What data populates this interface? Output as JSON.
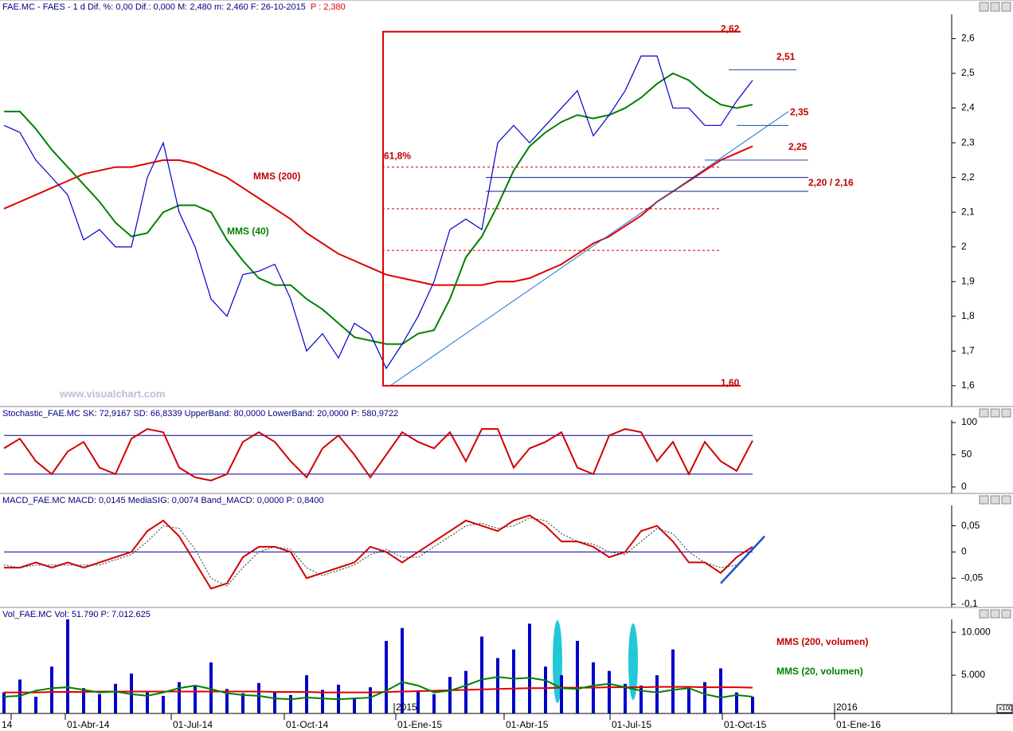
{
  "chart_data": [
    {
      "type": "line",
      "title": "FAE.MC - FAES - 1 d Dif. %: 0,00 Dif.: 0,000 M: 2,480 m: 2,460 F: 26-10-2015",
      "subtitle": "P : 2,380",
      "ylim": [
        1.54,
        2.67
      ],
      "yticks": [
        {
          "value": 1.6,
          "label": "1,6"
        },
        {
          "value": 1.7,
          "label": "1,7"
        },
        {
          "value": 1.8,
          "label": "1,8"
        },
        {
          "value": 1.9,
          "label": "1,9"
        },
        2,
        {
          "value": 2.1,
          "label": "2,1"
        },
        {
          "value": 2.2,
          "label": "2,2"
        },
        {
          "value": 2.3,
          "label": "2,3"
        },
        {
          "value": 2.4,
          "label": "2,4"
        },
        {
          "value": 2.5,
          "label": "2,5"
        },
        {
          "value": 2.6,
          "label": "2,6"
        }
      ],
      "series": [
        {
          "name": "MMS (200)",
          "color": "#e00000",
          "values": [
            2.11,
            2.13,
            2.15,
            2.17,
            2.19,
            2.21,
            2.22,
            2.23,
            2.23,
            2.24,
            2.25,
            2.25,
            2.24,
            2.22,
            2.2,
            2.17,
            2.14,
            2.11,
            2.08,
            2.04,
            2.01,
            1.98,
            1.96,
            1.94,
            1.92,
            1.91,
            1.9,
            1.89,
            1.89,
            1.89,
            1.89,
            1.9,
            1.9,
            1.91,
            1.93,
            1.95,
            1.98,
            2.01,
            2.03,
            2.06,
            2.09,
            2.13,
            2.16,
            2.19,
            2.22,
            2.25,
            2.27,
            2.29
          ]
        },
        {
          "name": "MMS (40)",
          "color": "#008000",
          "values": [
            2.39,
            2.39,
            2.34,
            2.28,
            2.23,
            2.18,
            2.13,
            2.07,
            2.03,
            2.04,
            2.1,
            2.12,
            2.12,
            2.1,
            2.02,
            1.96,
            1.91,
            1.89,
            1.89,
            1.85,
            1.82,
            1.78,
            1.74,
            1.73,
            1.72,
            1.72,
            1.75,
            1.76,
            1.85,
            1.97,
            2.03,
            2.12,
            2.22,
            2.29,
            2.33,
            2.36,
            2.38,
            2.37,
            2.38,
            2.4,
            2.43,
            2.47,
            2.5,
            2.48,
            2.44,
            2.41,
            2.4,
            2.41
          ]
        },
        {
          "color": "#0000c8",
          "values": [
            2.35,
            2.33,
            2.25,
            2.2,
            2.15,
            2.02,
            2.05,
            2.0,
            2.0,
            2.2,
            2.3,
            2.1,
            2.0,
            1.85,
            1.8,
            1.92,
            1.93,
            1.95,
            1.85,
            1.7,
            1.75,
            1.68,
            1.78,
            1.75,
            1.65,
            1.72,
            1.8,
            1.9,
            2.05,
            2.08,
            2.05,
            2.3,
            2.35,
            2.3,
            2.35,
            2.4,
            2.45,
            2.32,
            2.38,
            2.45,
            2.55,
            2.55,
            2.4,
            2.4,
            2.35,
            2.35,
            2.42,
            2.48
          ]
        }
      ],
      "levels": [
        {
          "value": 2.62,
          "label": "2,62"
        },
        {
          "value": 2.51,
          "label": "2,51"
        },
        {
          "value": 2.35,
          "label": "2,35"
        },
        {
          "value": 2.25,
          "label": "2,25"
        },
        {
          "value": 1.6,
          "label": "1,60"
        }
      ],
      "double_level": {
        "values": [
          2.2,
          2.16
        ],
        "label": "2,20 / 2,16"
      },
      "fib_levels": [
        {
          "value": 2.23,
          "label": "61,8%"
        },
        2.11,
        1.99
      ],
      "trend_line": [
        1.6,
        2.39
      ]
    },
    {
      "type": "line",
      "title": "Stochastic_FAE.MC SK: 72,9167 SD: 66,8339 UpperBand: 80,0000 LowerBand: 20,0000 P: 580,9722",
      "ylim": [
        -10,
        103.8
      ],
      "yticks": [
        0,
        50,
        100
      ],
      "bands": [
        20,
        80
      ],
      "series": [
        {
          "color": "#d00000",
          "values": [
            60,
            75,
            40,
            20,
            55,
            70,
            30,
            20,
            75,
            90,
            85,
            30,
            15,
            10,
            20,
            70,
            85,
            70,
            40,
            15,
            60,
            80,
            50,
            15,
            50,
            85,
            70,
            60,
            85,
            40,
            90,
            90,
            30,
            60,
            70,
            85,
            30,
            20,
            80,
            90,
            85,
            40,
            70,
            20,
            70,
            40,
            25,
            72
          ]
        }
      ]
    },
    {
      "type": "line",
      "title": "MACD_FAE.MC MACD: 0,0145 MediaSIG: 0,0074 Band_MACD: 0,0000 P: 0,8400",
      "ylim": [
        -0.106,
        0.089
      ],
      "yticks": [
        {
          "value": -0.1,
          "label": "-0,1"
        },
        {
          "value": -0.05,
          "label": "-0,05"
        },
        0,
        {
          "value": 0.05,
          "label": "0,05"
        }
      ],
      "bands": [
        0
      ],
      "series": [
        {
          "color": "#d00000",
          "values": [
            -0.03,
            -0.03,
            -0.02,
            -0.03,
            -0.02,
            -0.03,
            -0.02,
            -0.01,
            0,
            0.04,
            0.06,
            0.03,
            -0.02,
            -0.07,
            -0.06,
            -0.01,
            0.01,
            0.01,
            0,
            -0.05,
            -0.04,
            -0.03,
            -0.02,
            0.01,
            0,
            -0.02,
            0,
            0.02,
            0.04,
            0.06,
            0.05,
            0.04,
            0.06,
            0.07,
            0.05,
            0.02,
            0.02,
            0.01,
            -0.01,
            0,
            0.04,
            0.05,
            0.02,
            -0.02,
            -0.02,
            -0.04,
            -0.01,
            0.01
          ]
        },
        {
          "color": "#333333",
          "dash": true,
          "values": [
            -0.025,
            -0.03,
            -0.025,
            -0.025,
            -0.025,
            -0.025,
            -0.025,
            -0.015,
            -0.005,
            0.02,
            0.05,
            0.045,
            0.005,
            -0.05,
            -0.065,
            -0.03,
            0,
            0.01,
            0.005,
            -0.03,
            -0.045,
            -0.035,
            -0.025,
            -0.005,
            0.005,
            -0.01,
            -0.01,
            0.01,
            0.03,
            0.05,
            0.055,
            0.045,
            0.05,
            0.065,
            0.06,
            0.035,
            0.02,
            0.015,
            0,
            -0.005,
            0.02,
            0.045,
            0.035,
            0,
            -0.02,
            -0.03,
            -0.025,
            0.005
          ]
        }
      ],
      "trend_line": [
        -0.06,
        0.03
      ]
    },
    {
      "type": "bar",
      "title": "Vol_FAE.MC Vol: 51.790 P: 7.012.625",
      "ylim": [
        550,
        11500
      ],
      "yticks": [
        {
          "value": 5000,
          "label": "5.000"
        },
        {
          "value": 10000,
          "label": "10.000"
        }
      ],
      "color": "#0000c8",
      "values": [
        3000,
        4500,
        2500,
        6000,
        11500,
        3500,
        2800,
        4000,
        5200,
        3000,
        2600,
        4200,
        3800,
        6500,
        3400,
        2900,
        4100,
        3000,
        2700,
        5000,
        3300,
        3900,
        2400,
        3600,
        9000,
        10500,
        3200,
        2800,
        4800,
        5500,
        9500,
        7000,
        8000,
        11000,
        6000,
        5000,
        9000,
        6500,
        5500,
        4000,
        3800,
        5000,
        8000,
        3500,
        4200,
        5800,
        3000,
        2500
      ],
      "series": [
        {
          "name": "MMS (200, volumen)",
          "color": "#e00000",
          "values": [
            3000,
            3000,
            3000,
            3050,
            3050,
            3050,
            3100,
            3100,
            3100,
            3100,
            3100,
            3100,
            3100,
            3100,
            3100,
            3100,
            3100,
            3050,
            3050,
            3050,
            3000,
            3000,
            3000,
            3000,
            3050,
            3100,
            3150,
            3200,
            3250,
            3300,
            3350,
            3400,
            3450,
            3500,
            3500,
            3550,
            3550,
            3550,
            3600,
            3600,
            3600,
            3650,
            3650,
            3650,
            3600,
            3600,
            3600,
            3550
          ]
        },
        {
          "name": "MMS (20, volumen)",
          "color": "#008000",
          "values": [
            2500,
            2600,
            3200,
            3500,
            3600,
            3300,
            3000,
            3100,
            2800,
            2600,
            3000,
            3500,
            3800,
            3400,
            2900,
            2700,
            2600,
            2300,
            2200,
            2400,
            2300,
            2200,
            2300,
            2400,
            3200,
            4200,
            3800,
            3000,
            3200,
            3800,
            4500,
            4800,
            4600,
            4700,
            4400,
            3500,
            3400,
            3800,
            4000,
            3600,
            3200,
            3000,
            3300,
            3500,
            2800,
            2400,
            2700,
            2500
          ]
        }
      ]
    }
  ],
  "x_axis": {
    "labels": [
      "14",
      "01-Abr-14",
      "01-Jul-14",
      "01-Oct-14",
      "01-Ene-15",
      "01-Abr-15",
      "01-Jul-15",
      "01-Oct-15",
      "01-Ene-16"
    ],
    "years": [
      "2015",
      "2016"
    ]
  },
  "watermark": "www.visualchart.com",
  "scale_tag": "x100"
}
